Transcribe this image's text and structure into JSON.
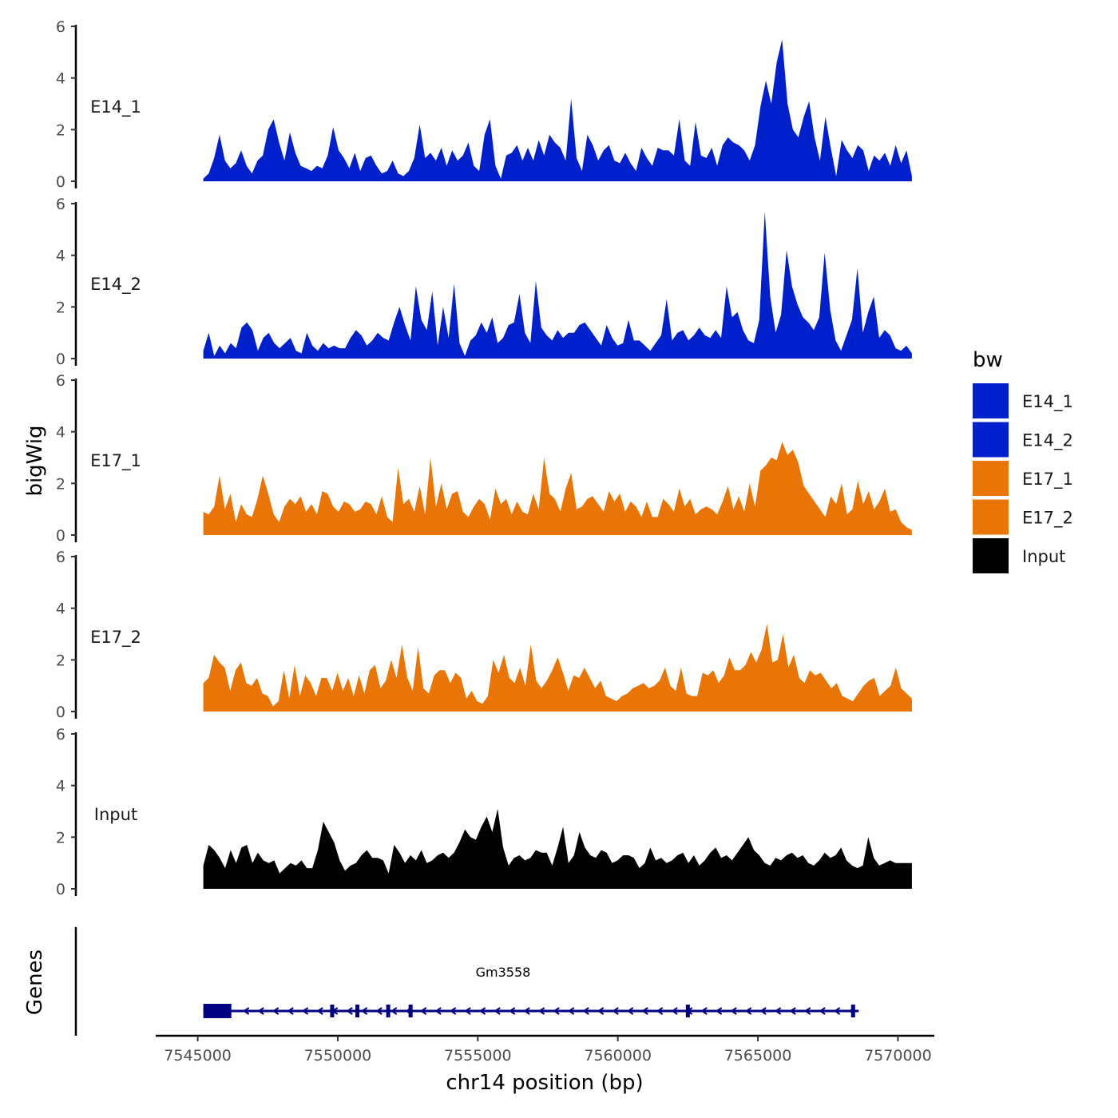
{
  "chart_data": {
    "type": "area",
    "ylabel": "bigWig",
    "xlabel": "chr14 position (bp)",
    "genes_label": "Genes",
    "xlim": [
      7543500,
      7571300
    ],
    "x_ticks": [
      7545000,
      7550000,
      7555000,
      7560000,
      7565000,
      7570000
    ],
    "x_tick_labels": [
      "7545000",
      "7550000",
      "7555000",
      "7560000",
      "7565000",
      "7570000"
    ],
    "ylim": [
      0,
      6
    ],
    "y_ticks": [
      0,
      2,
      4,
      6
    ],
    "y_tick_labels": [
      "0",
      "2",
      "4",
      "6"
    ],
    "x_start": 7545200,
    "x_end": 7570500,
    "legend": {
      "title": "bw",
      "placement": "right",
      "entries": [
        {
          "name": "E14_1",
          "color": "#0020CC"
        },
        {
          "name": "E14_2",
          "color": "#0020CC"
        },
        {
          "name": "E17_1",
          "color": "#E87505"
        },
        {
          "name": "E17_2",
          "color": "#E87505"
        },
        {
          "name": "Input",
          "color": "#000000"
        }
      ]
    },
    "series": [
      {
        "name": "E14_1",
        "color": "#0020CC",
        "values": [
          0.1,
          0.3,
          0.9,
          1.8,
          0.8,
          0.5,
          0.7,
          1.2,
          0.6,
          0.3,
          0.8,
          1.0,
          2.0,
          2.4,
          1.5,
          0.8,
          1.9,
          1.1,
          0.6,
          0.5,
          0.4,
          0.6,
          0.5,
          1.0,
          2.1,
          1.2,
          0.9,
          0.5,
          1.1,
          0.4,
          0.9,
          1.0,
          0.6,
          0.3,
          0.4,
          0.8,
          0.3,
          0.2,
          0.4,
          0.9,
          2.2,
          0.9,
          1.1,
          0.8,
          1.3,
          0.6,
          1.2,
          0.8,
          1.0,
          1.5,
          0.6,
          0.4,
          1.8,
          2.4,
          0.6,
          0.1,
          1.0,
          1.1,
          1.4,
          0.8,
          1.3,
          0.8,
          1.6,
          1.0,
          1.8,
          1.5,
          1.3,
          0.8,
          3.2,
          0.9,
          0.4,
          1.8,
          1.4,
          0.8,
          1.2,
          1.4,
          0.8,
          0.7,
          1.1,
          0.7,
          0.4,
          1.3,
          0.9,
          0.6,
          1.3,
          1.2,
          1.2,
          1.0,
          2.4,
          0.8,
          0.6,
          2.3,
          1.0,
          0.9,
          1.3,
          0.6,
          1.4,
          1.7,
          1.5,
          1.4,
          1.2,
          0.8,
          1.4,
          2.9,
          3.9,
          3.0,
          4.6,
          5.5,
          3.0,
          2.0,
          1.7,
          2.5,
          3.1,
          1.7,
          0.8,
          2.5,
          1.3,
          0.2,
          1.6,
          1.2,
          0.9,
          1.4,
          1.2,
          0.4,
          1.0,
          0.8,
          1.1,
          0.6,
          1.4,
          0.7,
          1.2,
          0.2
        ]
      },
      {
        "name": "E14_2",
        "color": "#0020CC",
        "values": [
          0.3,
          1.0,
          0.1,
          0.5,
          0.2,
          0.6,
          0.4,
          1.2,
          1.4,
          1.1,
          0.3,
          0.8,
          1.0,
          0.6,
          0.4,
          0.6,
          0.8,
          0.3,
          0.2,
          1.0,
          0.5,
          0.3,
          0.6,
          0.4,
          0.5,
          0.4,
          0.4,
          0.8,
          1.1,
          0.9,
          0.5,
          0.7,
          1.0,
          0.8,
          0.7,
          1.4,
          2.0,
          1.3,
          0.7,
          2.8,
          1.5,
          1.1,
          2.6,
          0.5,
          2.0,
          0.8,
          2.9,
          0.6,
          0.1,
          0.7,
          0.9,
          1.4,
          1.0,
          1.6,
          0.6,
          0.8,
          1.3,
          1.4,
          2.5,
          1.0,
          0.6,
          3.0,
          1.2,
          0.9,
          0.7,
          1.1,
          0.8,
          1.0,
          1.0,
          1.3,
          1.4,
          1.1,
          0.8,
          0.5,
          1.3,
          0.8,
          0.5,
          0.6,
          1.5,
          0.7,
          0.7,
          0.5,
          0.3,
          0.6,
          0.9,
          2.3,
          0.7,
          1.0,
          1.1,
          0.7,
          0.9,
          1.2,
          0.9,
          0.8,
          1.1,
          0.8,
          2.8,
          1.6,
          1.8,
          1.1,
          0.7,
          0.6,
          1.5,
          5.7,
          2.4,
          1.0,
          1.7,
          4.2,
          2.8,
          2.1,
          1.6,
          1.4,
          1.1,
          1.6,
          4.1,
          1.9,
          0.7,
          0.3,
          0.9,
          1.5,
          3.5,
          1.0,
          1.8,
          2.4,
          0.8,
          1.1,
          0.9,
          0.4,
          0.3,
          0.5,
          0.2
        ]
      },
      {
        "name": "E17_1",
        "color": "#E87505",
        "values": [
          0.9,
          0.8,
          1.1,
          2.3,
          1.0,
          1.6,
          0.5,
          1.2,
          0.8,
          0.7,
          1.4,
          2.3,
          1.6,
          0.8,
          0.5,
          1.1,
          1.4,
          1.2,
          1.5,
          0.9,
          1.2,
          0.8,
          1.7,
          1.6,
          1.1,
          0.9,
          1.3,
          1.2,
          0.9,
          1.0,
          1.3,
          1.2,
          0.8,
          1.5,
          0.7,
          0.5,
          2.6,
          1.2,
          1.4,
          0.9,
          1.9,
          0.8,
          3.0,
          1.1,
          2.0,
          1.0,
          1.6,
          1.7,
          0.9,
          0.7,
          1.1,
          1.4,
          1.2,
          0.6,
          1.8,
          1.2,
          1.4,
          0.8,
          1.3,
          0.9,
          0.8,
          1.6,
          1.0,
          3.0,
          1.6,
          1.4,
          0.9,
          1.8,
          2.4,
          1.0,
          1.1,
          1.4,
          1.5,
          1.2,
          0.9,
          1.7,
          1.3,
          1.6,
          0.9,
          1.3,
          1.1,
          0.7,
          1.3,
          0.7,
          0.7,
          1.4,
          1.2,
          0.9,
          1.8,
          1.1,
          1.4,
          0.8,
          1.0,
          1.1,
          1.0,
          0.8,
          1.3,
          1.9,
          1.0,
          1.5,
          0.9,
          2.0,
          1.1,
          2.5,
          2.7,
          3.0,
          2.9,
          3.6,
          3.1,
          3.3,
          2.8,
          1.9,
          1.6,
          1.3,
          1.0,
          0.7,
          1.5,
          1.2,
          2.0,
          0.8,
          1.0,
          2.1,
          1.2,
          1.7,
          1.0,
          1.3,
          1.8,
          0.9,
          1.0,
          0.5,
          0.3,
          0.2
        ]
      },
      {
        "name": "E17_2",
        "color": "#E87505",
        "values": [
          1.1,
          1.3,
          2.2,
          1.9,
          1.7,
          0.8,
          1.6,
          1.9,
          1.1,
          1.0,
          1.3,
          0.7,
          0.6,
          0.2,
          0.4,
          1.6,
          0.5,
          1.8,
          0.6,
          1.4,
          1.1,
          0.6,
          1.3,
          1.3,
          0.8,
          1.5,
          0.8,
          1.3,
          0.6,
          1.4,
          0.7,
          1.6,
          1.8,
          0.9,
          1.2,
          2.0,
          1.3,
          2.6,
          1.3,
          0.8,
          2.5,
          0.9,
          0.7,
          1.4,
          1.6,
          1.6,
          1.1,
          1.5,
          1.3,
          0.5,
          0.8,
          0.4,
          0.3,
          0.6,
          2.0,
          1.5,
          2.2,
          1.3,
          1.1,
          1.7,
          1.0,
          2.6,
          1.2,
          0.9,
          1.2,
          1.6,
          2.1,
          1.5,
          0.8,
          1.4,
          1.3,
          1.7,
          1.3,
          0.9,
          1.2,
          0.6,
          0.5,
          0.4,
          0.6,
          0.7,
          0.9,
          1.0,
          1.1,
          0.9,
          1.0,
          1.2,
          1.7,
          1.0,
          0.8,
          1.7,
          0.7,
          0.6,
          0.6,
          1.5,
          1.4,
          1.6,
          1.1,
          1.4,
          2.1,
          1.6,
          1.6,
          1.8,
          2.3,
          1.9,
          2.4,
          3.4,
          1.9,
          2.0,
          3.0,
          1.7,
          2.2,
          1.3,
          1.1,
          1.6,
          1.4,
          1.5,
          1.2,
          0.9,
          1.1,
          0.6,
          0.5,
          0.4,
          0.7,
          1.0,
          1.2,
          1.3,
          0.6,
          0.8,
          1.0,
          1.7,
          0.9,
          0.7,
          0.5
        ]
      },
      {
        "name": "Input",
        "color": "#000000",
        "values": [
          0.9,
          1.7,
          1.5,
          1.2,
          0.8,
          1.5,
          1.0,
          1.6,
          1.7,
          1.0,
          1.4,
          1.1,
          1.0,
          1.1,
          0.6,
          0.8,
          1.0,
          0.9,
          1.1,
          0.8,
          0.8,
          1.5,
          2.6,
          2.2,
          1.8,
          1.1,
          0.7,
          0.9,
          1.0,
          1.3,
          1.5,
          1.2,
          1.2,
          1.1,
          0.6,
          1.7,
          1.4,
          1.0,
          1.3,
          1.1,
          1.5,
          1.0,
          1.1,
          1.3,
          1.4,
          1.2,
          1.4,
          1.8,
          2.3,
          2.0,
          1.9,
          2.4,
          2.8,
          2.2,
          3.1,
          1.6,
          0.9,
          1.2,
          1.3,
          1.1,
          1.2,
          1.5,
          1.4,
          1.4,
          0.9,
          1.6,
          2.4,
          1.0,
          1.3,
          2.2,
          1.6,
          1.3,
          1.2,
          1.5,
          1.4,
          1.0,
          1.1,
          1.3,
          1.3,
          1.2,
          0.8,
          1.0,
          1.6,
          1.1,
          1.2,
          1.0,
          1.1,
          1.3,
          1.4,
          1.0,
          1.3,
          0.9,
          1.1,
          1.4,
          1.6,
          1.2,
          1.3,
          1.1,
          1.4,
          1.7,
          2.0,
          1.5,
          1.3,
          1.0,
          0.9,
          1.2,
          1.1,
          1.3,
          1.4,
          1.2,
          1.3,
          1.0,
          0.9,
          1.1,
          1.4,
          1.2,
          1.3,
          1.6,
          1.1,
          0.9,
          0.8,
          0.9,
          2.0,
          1.2,
          0.9,
          1.0,
          1.1,
          1.0,
          1.0,
          1.0,
          1.0
        ]
      }
    ],
    "gene": {
      "name": "Gm3558",
      "color": "#000080",
      "strand": "-",
      "start": 7545200,
      "end": 7568600,
      "thick_block": [
        7545200,
        7546200
      ],
      "exon_marks": [
        7549800,
        7550700,
        7551800,
        7552600,
        7562500,
        7568400
      ]
    }
  }
}
